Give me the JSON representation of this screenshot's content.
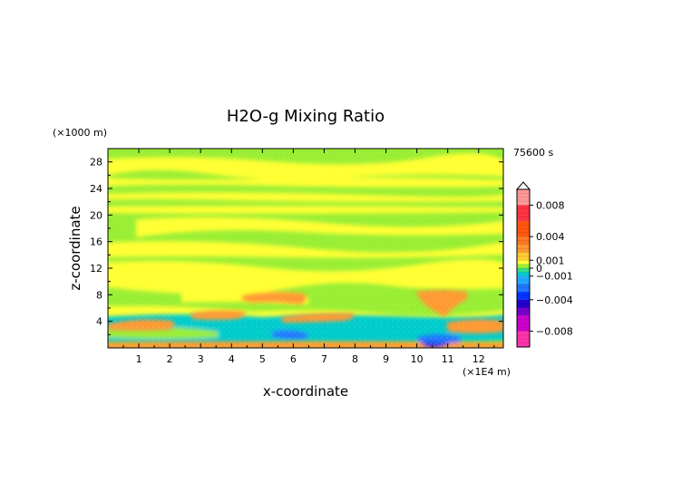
{
  "chart_data": {
    "type": "heatmap",
    "title": "H2O-g Mixing Ratio",
    "xlabel": "x-coordinate",
    "ylabel": "z-coordinate",
    "x_unit": "(×1E4 m)",
    "y_unit": "(×1000 m)",
    "time_label": "75600 s",
    "xlim": [
      0,
      12.8
    ],
    "ylim": [
      0,
      30
    ],
    "x_ticks": [
      1,
      2,
      3,
      4,
      5,
      6,
      7,
      8,
      9,
      10,
      11,
      12
    ],
    "y_ticks": [
      4,
      8,
      12,
      16,
      20,
      24,
      28
    ],
    "x_tick_labels": [
      "1",
      "2",
      "3",
      "4",
      "5",
      "6",
      "7",
      "8",
      "9",
      "10",
      "11",
      "12"
    ],
    "y_tick_labels": [
      "4",
      "8",
      "12",
      "16",
      "20",
      "24",
      "28"
    ],
    "colorbar": {
      "range": [
        -0.01,
        0.01
      ],
      "tick_values": [
        0.008,
        0.004,
        0.001,
        0,
        -0.001,
        -0.004,
        -0.008
      ],
      "tick_labels": [
        "0.008",
        "0.004",
        "0.001",
        "0",
        "−0.001",
        "−0.004",
        "−0.008"
      ],
      "extend": "max"
    },
    "colors": {
      "background_field": "#99ee33",
      "positive_small": "#ffff33",
      "positive_mid": "#ff9933",
      "negative_small": "#00cccc",
      "negative_mid": "#2277ff",
      "negative_large": "#2200cc"
    },
    "regions": [
      {
        "label": "upper-layer-positive",
        "x": [
          0.0,
          12.8
        ],
        "z": [
          27.0,
          28.8
        ],
        "value": 0.0004
      },
      {
        "label": "layer-25",
        "x": [
          0.0,
          12.8
        ],
        "z": [
          24.5,
          25.5
        ],
        "value": 0.0004
      },
      {
        "label": "layer-22",
        "x": [
          0.0,
          12.8
        ],
        "z": [
          21.5,
          23.0
        ],
        "value": 0.0004
      },
      {
        "label": "layer-20",
        "x": [
          0.0,
          12.8
        ],
        "z": [
          19.5,
          20.5
        ],
        "value": 0.0004
      },
      {
        "label": "layer-17",
        "x": [
          1.2,
          12.8
        ],
        "z": [
          16.5,
          18.5
        ],
        "value": 0.0004
      },
      {
        "label": "layer-14",
        "x": [
          0.0,
          12.8
        ],
        "z": [
          13.0,
          15.5
        ],
        "value": 0.0004
      },
      {
        "label": "layer-10",
        "x": [
          0.0,
          12.8
        ],
        "z": [
          8.5,
          12.5
        ],
        "value": 0.0004
      },
      {
        "label": "mid-positive-left",
        "x": [
          4.6,
          6.4
        ],
        "z": [
          6.8,
          8.3
        ],
        "value": 0.0025
      },
      {
        "label": "mid-positive-right",
        "x": [
          9.9,
          11.5
        ],
        "z": [
          6.5,
          8.3
        ],
        "value": 0.0025
      },
      {
        "label": "low-positive-left",
        "x": [
          0.8,
          2.3
        ],
        "z": [
          2.8,
          3.8
        ],
        "value": 0.0025
      },
      {
        "label": "low-positive-center",
        "x": [
          3.2,
          4.4
        ],
        "z": [
          4.8,
          5.4
        ],
        "value": 0.0025
      },
      {
        "label": "low-positive-right",
        "x": [
          11.0,
          12.8
        ],
        "z": [
          2.8,
          4.2
        ],
        "value": 0.0025
      },
      {
        "label": "boundary-negative",
        "x": [
          0.0,
          12.8
        ],
        "z": [
          1.0,
          5.0
        ],
        "value": -0.0008
      },
      {
        "label": "surface-negative-strong",
        "x": [
          10.2,
          11.2
        ],
        "z": [
          0.2,
          0.9
        ],
        "value": -0.006
      }
    ]
  }
}
